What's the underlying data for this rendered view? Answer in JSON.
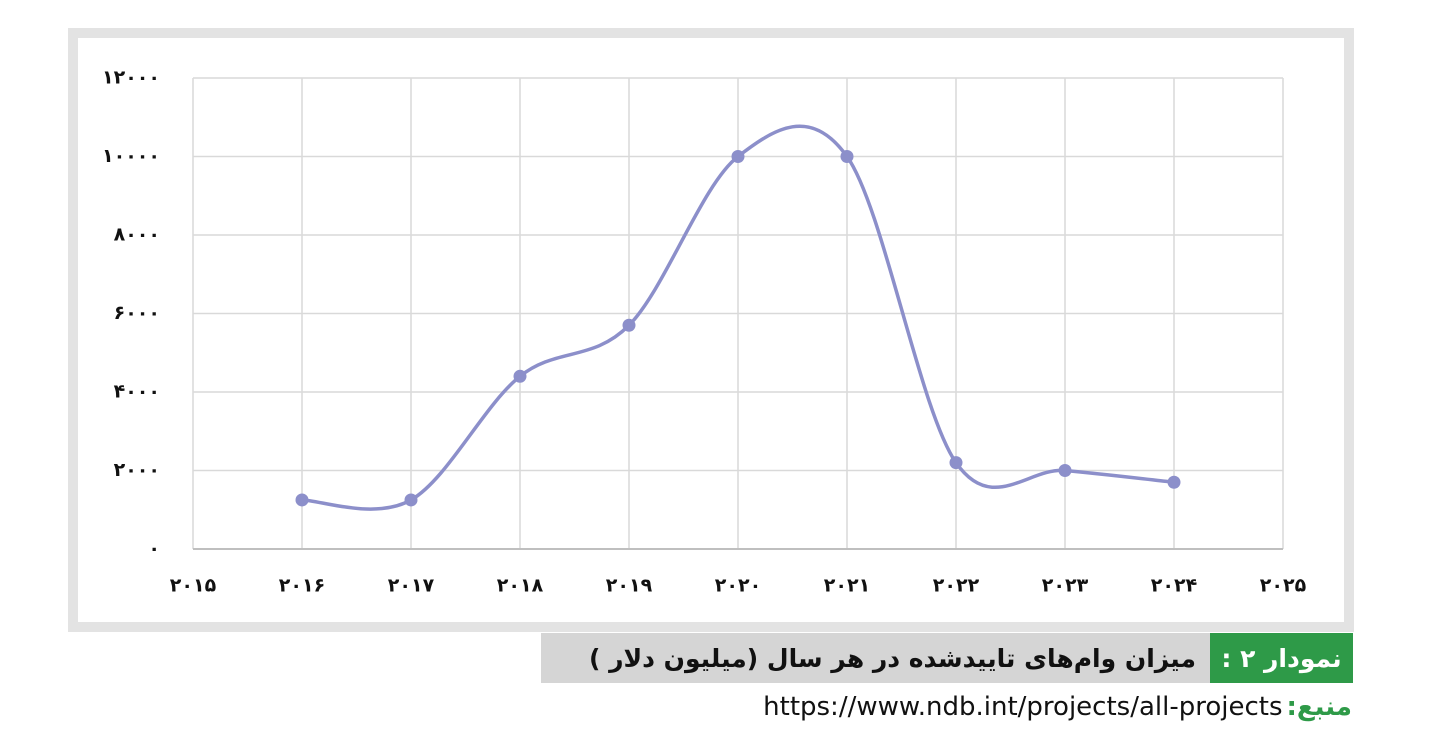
{
  "chart_data": {
    "type": "line",
    "figure_label": "نمودار ۲ :",
    "title": "میزان وام‌های تاییدشده در هر سال (میلیون دلار )",
    "source_label": "منبع:",
    "source_url": "https://www.ndb.int/projects/all-projects",
    "x": [
      2016,
      2017,
      2018,
      2019,
      2020,
      2021,
      2022,
      2023,
      2024
    ],
    "series": [
      {
        "color": "#8c8fca",
        "values": [
          1250,
          1250,
          4400,
          5700,
          10000,
          10000,
          2200,
          2000,
          1700
        ]
      }
    ],
    "xlim": [
      2015,
      2025
    ],
    "xticks": [
      {
        "value": 2015,
        "label": "۲۰۱۵"
      },
      {
        "value": 2016,
        "label": "۲۰۱۶"
      },
      {
        "value": 2017,
        "label": "۲۰۱۷"
      },
      {
        "value": 2018,
        "label": "۲۰۱۸"
      },
      {
        "value": 2019,
        "label": "۲۰۱۹"
      },
      {
        "value": 2020,
        "label": "۲۰۲۰"
      },
      {
        "value": 2021,
        "label": "۲۰۲۱"
      },
      {
        "value": 2022,
        "label": "۲۰۲۲"
      },
      {
        "value": 2023,
        "label": "۲۰۲۳"
      },
      {
        "value": 2024,
        "label": "۲۰۲۴"
      },
      {
        "value": 2025,
        "label": "۲۰۲۵"
      }
    ],
    "ylim": [
      0,
      12000
    ],
    "yticks": [
      {
        "value": 0,
        "label": "۰"
      },
      {
        "value": 2000,
        "label": "۲۰۰۰"
      },
      {
        "value": 4000,
        "label": "۴۰۰۰"
      },
      {
        "value": 6000,
        "label": "۶۰۰۰"
      },
      {
        "value": 8000,
        "label": "۸۰۰۰"
      },
      {
        "value": 10000,
        "label": "۱۰۰۰۰"
      },
      {
        "value": 12000,
        "label": "۱۲۰۰۰"
      }
    ],
    "grid": true,
    "smooth": true
  }
}
